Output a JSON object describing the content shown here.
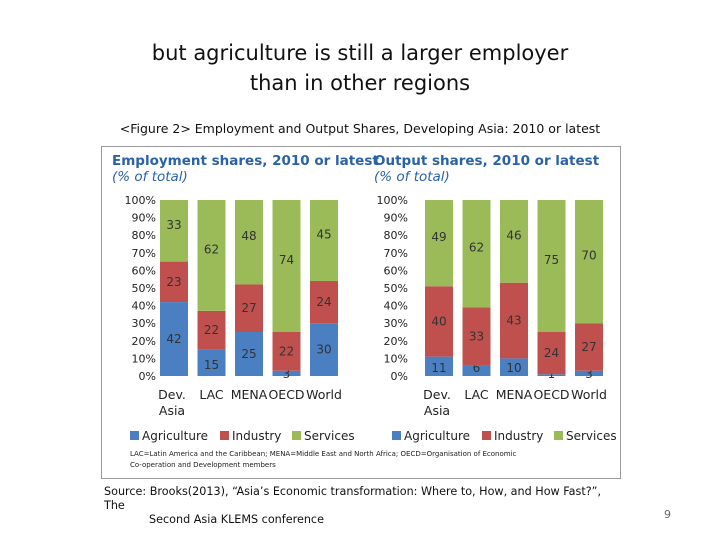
{
  "slide": {
    "title_line1": "but agriculture is still a larger employer",
    "title_line2": "than in other regions",
    "caption": "<Figure 2> Employment and Output Shares, Developing Asia: 2010 or latest",
    "source_line1": "Source: Brooks(2013), “Asia’s Economic transformation: Where to, How, and How Fast?”, The",
    "source_line2": "Second Asia KLEMS conference",
    "page_number": "9",
    "footnote_line1": "LAC=Latin America and the Caribbean; MENA=Middle East and North Africa; OECD=Organisation of Economic",
    "footnote_line2": "Co-operation and Development members"
  },
  "colors": {
    "agriculture": "#4a7fc1",
    "industry": "#c0504d",
    "services": "#9bbb59",
    "panel_title": "#2a62a8"
  },
  "chart_data": [
    {
      "type": "bar",
      "stacked": true,
      "title": "Employment shares, 2010 or latest",
      "subtitle": "(% of total)",
      "categories": [
        "Dev. Asia",
        "LAC",
        "MENA",
        "OECD",
        "World"
      ],
      "category_lines": [
        [
          "Dev.",
          "Asia"
        ],
        [
          "LAC"
        ],
        [
          "MENA"
        ],
        [
          "OECD"
        ],
        [
          "World"
        ]
      ],
      "series": [
        {
          "name": "Agriculture",
          "values": [
            42,
            15,
            25,
            3,
            30
          ]
        },
        {
          "name": "Industry",
          "values": [
            23,
            22,
            27,
            22,
            24
          ]
        },
        {
          "name": "Services",
          "values": [
            33,
            62,
            48,
            74,
            45
          ]
        }
      ],
      "ylim": [
        0,
        100
      ],
      "yticks": [
        "0%",
        "10%",
        "20%",
        "30%",
        "40%",
        "50%",
        "60%",
        "70%",
        "80%",
        "90%",
        "100%"
      ],
      "legend": [
        "Agriculture",
        "Industry",
        "Services"
      ]
    },
    {
      "type": "bar",
      "stacked": true,
      "title": "Output shares, 2010 or latest",
      "subtitle": "(% of total)",
      "categories": [
        "Dev. Asia",
        "LAC",
        "MENA",
        "OECD",
        "World"
      ],
      "category_lines": [
        [
          "Dev.",
          "Asia"
        ],
        [
          "LAC"
        ],
        [
          "MENA"
        ],
        [
          "OECD"
        ],
        [
          "World"
        ]
      ],
      "series": [
        {
          "name": "Agriculture",
          "values": [
            11,
            6,
            10,
            1,
            3
          ]
        },
        {
          "name": "Industry",
          "values": [
            40,
            33,
            43,
            24,
            27
          ]
        },
        {
          "name": "Services",
          "values": [
            49,
            62,
            46,
            75,
            70
          ]
        }
      ],
      "ylim": [
        0,
        100
      ],
      "yticks": [
        "0%",
        "10%",
        "20%",
        "30%",
        "40%",
        "50%",
        "60%",
        "70%",
        "80%",
        "90%",
        "100%"
      ],
      "legend": [
        "Agriculture",
        "Industry",
        "Services"
      ]
    }
  ]
}
